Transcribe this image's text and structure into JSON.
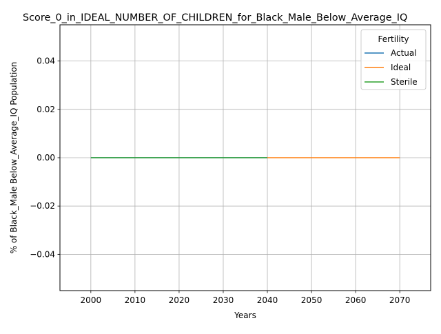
{
  "chart_data": {
    "type": "line",
    "title": "Score_0_in_IDEAL_NUMBER_OF_CHILDREN_for_Black_Male_Below_Average_IQ",
    "xlabel": "Years",
    "ylabel": "% of Black_Male Below_Average_IQ Population",
    "xlim": [
      1993,
      2077
    ],
    "ylim": [
      -0.055,
      0.055
    ],
    "x_ticks": [
      2000,
      2010,
      2020,
      2030,
      2040,
      2050,
      2060,
      2070
    ],
    "x_tick_labels": [
      "2000",
      "2010",
      "2020",
      "2030",
      "2040",
      "2050",
      "2060",
      "2070"
    ],
    "y_ticks": [
      -0.04,
      -0.02,
      0.0,
      0.02,
      0.04
    ],
    "y_tick_labels": [
      "−0.04",
      "−0.02",
      "0.00",
      "0.02",
      "0.04"
    ],
    "grid": true,
    "legend": {
      "title": "Fertility",
      "placement": "top-right",
      "entries": [
        "Actual",
        "Ideal",
        "Sterile"
      ]
    },
    "series": [
      {
        "name": "Actual",
        "color": "#1f77b4",
        "x": [
          2000,
          2010,
          2020,
          2030,
          2040
        ],
        "y": [
          0,
          0,
          0,
          0,
          0
        ]
      },
      {
        "name": "Ideal",
        "color": "#ff7f0e",
        "x": [
          2040,
          2050,
          2060,
          2070
        ],
        "y": [
          0,
          0,
          0,
          0
        ]
      },
      {
        "name": "Sterile",
        "color": "#2ca02c",
        "x": [
          2000,
          2010,
          2020,
          2030,
          2040
        ],
        "y": [
          0,
          0,
          0,
          0,
          0
        ]
      }
    ]
  }
}
